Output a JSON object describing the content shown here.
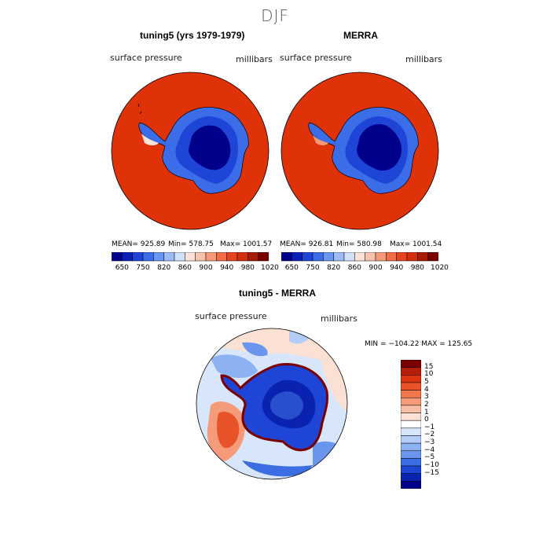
{
  "season": "DJF",
  "panels": [
    {
      "title": "tuning5 (yrs 1979-1979)",
      "variable": "surface pressure",
      "units": "millibars",
      "stats": {
        "mean": "MEAN= 925.89",
        "min": "Min= 578.75",
        "max": "Max= 1001.57"
      }
    },
    {
      "title": "MERRA",
      "variable": "surface pressure",
      "units": "millibars",
      "stats": {
        "mean": "MEAN= 926.81",
        "min": "Min= 580.98",
        "max": "Max= 1001.54"
      }
    }
  ],
  "top_colorbar": {
    "labels": [
      "650",
      "750",
      "820",
      "860",
      "900",
      "940",
      "980",
      "1020"
    ],
    "colors": [
      "#00008b",
      "#0a1fb5",
      "#1f45d6",
      "#3b6de8",
      "#6a95f0",
      "#9dbcf5",
      "#cfe0fa",
      "#fbe3da",
      "#f8c3ac",
      "#f59a78",
      "#ef6e48",
      "#e5441f",
      "#d42e0d",
      "#a51b05",
      "#7a0000"
    ]
  },
  "diff_panel": {
    "title": "tuning5 - MERRA",
    "variable": "surface pressure",
    "units": "millibars",
    "minmax": "MIN = −104.22  MAX = 125.65",
    "colorbar_labels": [
      "15",
      "10",
      "5",
      "4",
      "3",
      "2",
      "1",
      "0",
      "−1",
      "−2",
      "−3",
      "−4",
      "−5",
      "−10",
      "−15"
    ],
    "colorbar_colors": [
      "#7a0000",
      "#b51e08",
      "#d93510",
      "#e8532a",
      "#f0764c",
      "#f59b7a",
      "#f8bea3",
      "#fbe1d3",
      "#ffffff",
      "#d8e6fb",
      "#b3cdf6",
      "#8db2f1",
      "#6a95ec",
      "#3d6de2",
      "#1f45d6",
      "#0a22b0",
      "#00008b"
    ]
  },
  "colors": {
    "ocean_pressure": "#e03208",
    "plateau": "#00008b",
    "ice_edge": "#3b6de8",
    "diff_warm": "#f0764c",
    "diff_cool": "#8db2f1"
  }
}
